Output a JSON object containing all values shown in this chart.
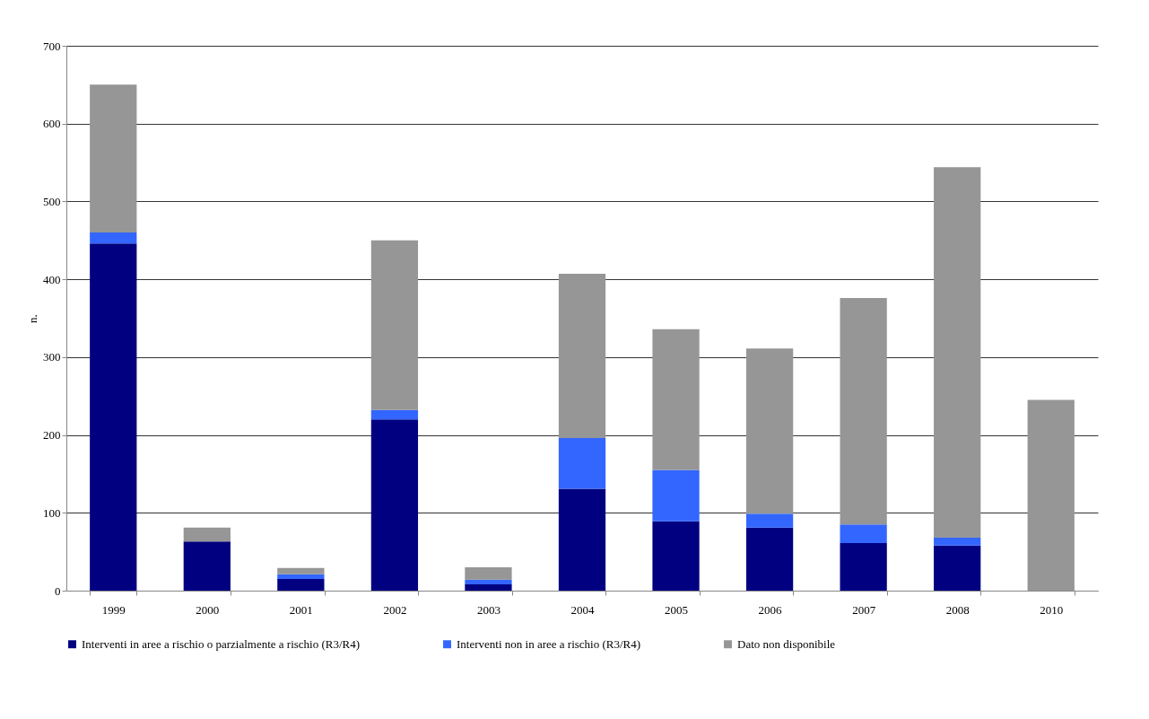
{
  "chart_data": {
    "type": "bar",
    "stacked": true,
    "ylabel": "n.",
    "categories": [
      "1999",
      "2000",
      "2001",
      "2002",
      "2003",
      "2004",
      "2005",
      "2006",
      "2007",
      "2008",
      "2010"
    ],
    "series": [
      {
        "name": "Interventi in aree a rischio o parzialmente a rischio (R3/R4)",
        "color": "#000080",
        "values": [
          446,
          63,
          15,
          220,
          8,
          131,
          89,
          81,
          61,
          58,
          0
        ]
      },
      {
        "name": "Interventi non in aree a rischio (R3/R4)",
        "color": "#3366ff",
        "values": [
          14,
          null,
          6,
          12,
          6,
          65,
          66,
          18,
          24,
          10,
          0
        ]
      },
      {
        "name": "Dato non disponibile",
        "color": "#969696",
        "values": [
          190,
          18,
          8,
          218,
          16,
          211,
          181,
          212,
          291,
          476,
          245
        ]
      }
    ],
    "ylim": [
      0,
      700
    ],
    "yticks": [
      0,
      100,
      200,
      300,
      400,
      500,
      600,
      700
    ],
    "grid": "y",
    "legend": "bottom"
  }
}
